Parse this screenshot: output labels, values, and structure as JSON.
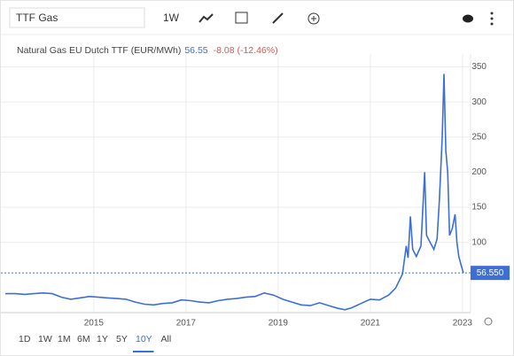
{
  "toolbar": {
    "search": "TTF Gas",
    "interval": "1W"
  },
  "header": {
    "name": "Natural Gas EU Dutch TTF (EUR/MWh)",
    "price": "56.55",
    "change": "-8.08 (-12.46%)"
  },
  "ranges": [
    "1D",
    "1W",
    "1M",
    "6M",
    "1Y",
    "5Y",
    "10Y",
    "All"
  ],
  "selected_range": "10Y",
  "chart_data": {
    "type": "line",
    "color": "#3b6fd6",
    "grid": true,
    "x": [
      2013.08,
      2013.3,
      2013.5,
      2013.7,
      2013.9,
      2014.1,
      2014.3,
      2014.5,
      2014.7,
      2014.9,
      2015.1,
      2015.3,
      2015.5,
      2015.7,
      2015.9,
      2016.1,
      2016.3,
      2016.5,
      2016.7,
      2016.9,
      2017.1,
      2017.3,
      2017.5,
      2017.7,
      2017.9,
      2018.1,
      2018.3,
      2018.5,
      2018.7,
      2018.9,
      2019.1,
      2019.3,
      2019.5,
      2019.7,
      2019.9,
      2020.1,
      2020.3,
      2020.45,
      2020.6,
      2020.8,
      2021.0,
      2021.2,
      2021.4,
      2021.55,
      2021.7,
      2021.78,
      2021.82,
      2021.87,
      2021.92,
      2022.0,
      2022.1,
      2022.18,
      2022.22,
      2022.3,
      2022.38,
      2022.45,
      2022.5,
      2022.56,
      2022.6,
      2022.64,
      2022.68,
      2022.72,
      2022.78,
      2022.84,
      2022.88,
      2022.92,
      2022.96,
      2023.02
    ],
    "values": [
      27,
      27,
      26,
      27,
      28,
      27,
      22,
      19,
      21,
      23,
      22,
      21,
      20,
      19,
      15,
      12,
      11,
      13,
      14,
      18,
      17,
      15,
      14,
      17,
      19,
      20,
      22,
      23,
      28,
      25,
      19,
      15,
      11,
      10,
      14,
      10,
      6,
      4,
      7,
      13,
      19,
      18,
      25,
      35,
      55,
      95,
      78,
      137,
      90,
      80,
      95,
      200,
      110,
      100,
      90,
      105,
      160,
      250,
      340,
      230,
      200,
      110,
      120,
      140,
      100,
      80,
      70,
      56.55
    ],
    "last_price": {
      "value": 56.55,
      "label": "56.550"
    },
    "xlim": [
      2013.08,
      2023.08
    ],
    "xticks": [
      2015,
      2017,
      2019,
      2021,
      2023
    ],
    "ylim": [
      0,
      362
    ],
    "yticks": [
      100,
      150,
      200,
      250,
      300,
      350
    ]
  }
}
